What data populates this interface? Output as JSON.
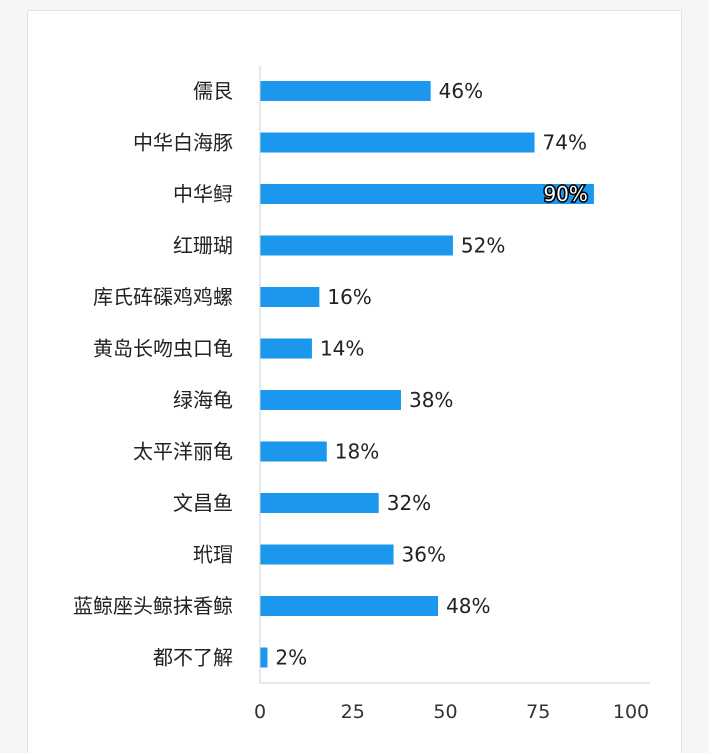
{
  "chart_data": {
    "type": "bar",
    "orientation": "horizontal",
    "categories": [
      "儒艮",
      "中华白海豚",
      "中华鲟",
      "红珊瑚",
      "库氏砗磲鸡鸡螺",
      "黄岛长吻虫口龟",
      "绿海龟",
      "太平洋丽龟",
      "文昌鱼",
      "玳瑁",
      "蓝鲸座头鲸抹香鲸",
      "都不了解"
    ],
    "values": [
      46,
      74,
      90,
      52,
      16,
      14,
      38,
      18,
      32,
      36,
      48,
      2
    ],
    "value_labels": [
      "46%",
      "74%",
      "90%",
      "52%",
      "16%",
      "14%",
      "38%",
      "18%",
      "32%",
      "36%",
      "48%",
      "2%"
    ],
    "xlim": [
      0,
      100
    ],
    "xticks": [
      "0",
      "25",
      "50",
      "75",
      "100"
    ],
    "bar_color": "#1b97ee",
    "grid": false,
    "title": "",
    "xlabel": "",
    "ylabel": ""
  }
}
